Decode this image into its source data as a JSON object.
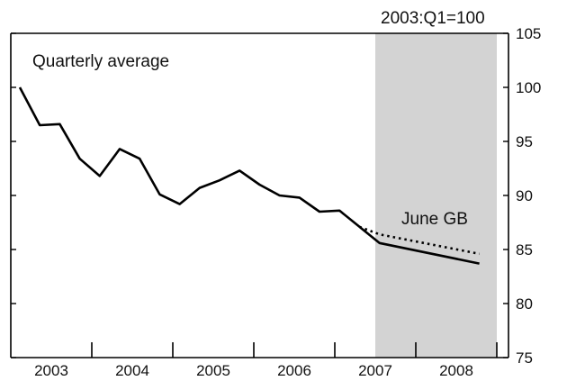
{
  "chart_data": {
    "type": "line",
    "unit_label": "2003:Q1=100",
    "annotation": "Quarterly average",
    "ylim": [
      75,
      105
    ],
    "y_ticks": [
      75,
      80,
      85,
      90,
      95,
      100,
      105
    ],
    "x_labels": [
      "2003",
      "2004",
      "2005",
      "2006",
      "2007",
      "2008"
    ],
    "shaded_period": {
      "start": "2007:Q1",
      "end": "2008:Q4"
    },
    "grid": false,
    "series": [
      {
        "name": "",
        "style": "solid",
        "points": [
          {
            "q": "2003:Q1",
            "v": 100
          },
          {
            "q": "2003:Q2",
            "v": 96.5
          },
          {
            "q": "2003:Q3",
            "v": 96.6
          },
          {
            "q": "2003:Q4",
            "v": 93.4
          },
          {
            "q": "2004:Q1",
            "v": 91.8
          },
          {
            "q": "2004:Q2",
            "v": 94.3
          },
          {
            "q": "2004:Q3",
            "v": 93.4
          },
          {
            "q": "2004:Q4",
            "v": 90.1
          },
          {
            "q": "2005:Q1",
            "v": 89.2
          },
          {
            "q": "2005:Q2",
            "v": 90.7
          },
          {
            "q": "2005:Q3",
            "v": 91.4
          },
          {
            "q": "2005:Q4",
            "v": 92.3
          },
          {
            "q": "2006:Q1",
            "v": 91.0
          },
          {
            "q": "2006:Q2",
            "v": 90.0
          },
          {
            "q": "2006:Q3",
            "v": 89.8
          },
          {
            "q": "2006:Q4",
            "v": 88.5
          },
          {
            "q": "2007:Q1",
            "v": 88.6
          },
          {
            "q": "2007:Q2",
            "v": 87.1
          },
          {
            "q": "2007:Q3",
            "v": 85.6
          },
          {
            "q": "2008:Q4",
            "v": 83.7
          }
        ]
      },
      {
        "name": "June GB",
        "style": "dotted",
        "points": [
          {
            "q": "2007:Q2",
            "v": 87.1
          },
          {
            "q": "2007:Q3",
            "v": 86.4
          },
          {
            "q": "2008:Q4",
            "v": 84.6
          }
        ]
      }
    ]
  }
}
